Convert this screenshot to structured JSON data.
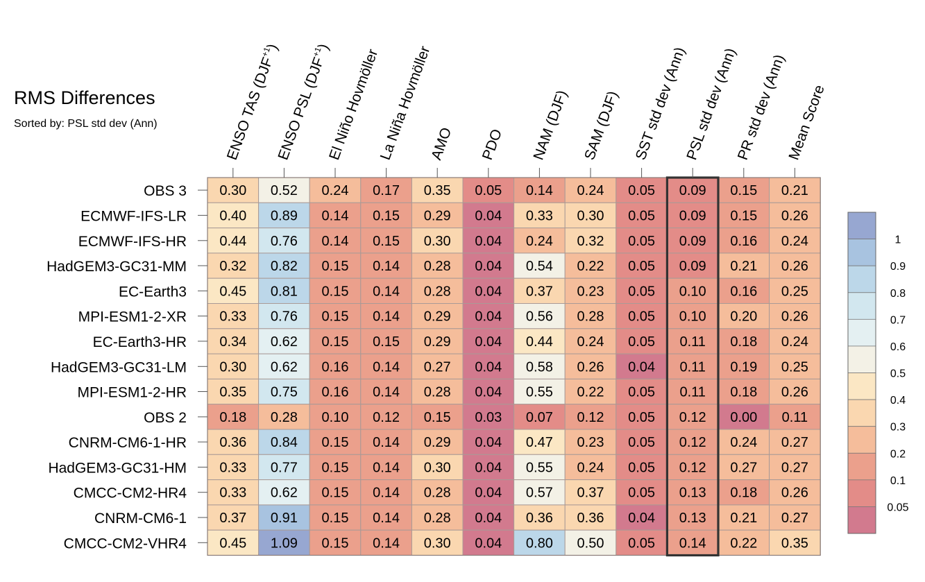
{
  "chart_data": {
    "type": "heatmap",
    "title": "RMS Differences",
    "subtitle": "Sorted by: PSL std dev (Ann)",
    "columns": [
      {
        "base": "ENSO TAS (DJF",
        "sup": "+1",
        "tail": ")"
      },
      {
        "base": "ENSO PSL (DJF",
        "sup": "+1",
        "tail": ")"
      },
      {
        "base": "El Niño Hovmöller"
      },
      {
        "base": "La Niña Hovmöller"
      },
      {
        "base": "AMO"
      },
      {
        "base": "PDO"
      },
      {
        "base": "NAM (DJF)"
      },
      {
        "base": "SAM (DJF)"
      },
      {
        "base": "SST std dev (Ann)"
      },
      {
        "base": "PSL std dev (Ann)"
      },
      {
        "base": "PR std dev (Ann)"
      },
      {
        "base": "Mean Score"
      }
    ],
    "rows": [
      "OBS 3",
      "ECMWF-IFS-LR",
      "ECMWF-IFS-HR",
      "HadGEM3-GC31-MM",
      "EC-Earth3",
      "MPI-ESM1-2-XR",
      "EC-Earth3-HR",
      "HadGEM3-GC31-LM",
      "MPI-ESM1-2-HR",
      "OBS 2",
      "CNRM-CM6-1-HR",
      "HadGEM3-GC31-HM",
      "CMCC-CM2-HR4",
      "CNRM-CM6-1",
      "CMCC-CM2-VHR4"
    ],
    "values": [
      [
        "0.30",
        "0.52",
        "0.24",
        "0.17",
        "0.35",
        "0.05",
        "0.14",
        "0.24",
        "0.05",
        "0.09",
        "0.15",
        "0.21"
      ],
      [
        "0.40",
        "0.89",
        "0.14",
        "0.15",
        "0.29",
        "0.04",
        "0.33",
        "0.30",
        "0.05",
        "0.09",
        "0.15",
        "0.26"
      ],
      [
        "0.44",
        "0.76",
        "0.14",
        "0.15",
        "0.30",
        "0.04",
        "0.24",
        "0.32",
        "0.05",
        "0.09",
        "0.16",
        "0.24"
      ],
      [
        "0.32",
        "0.82",
        "0.15",
        "0.14",
        "0.28",
        "0.04",
        "0.54",
        "0.22",
        "0.05",
        "0.09",
        "0.21",
        "0.26"
      ],
      [
        "0.45",
        "0.81",
        "0.15",
        "0.14",
        "0.28",
        "0.04",
        "0.37",
        "0.23",
        "0.05",
        "0.10",
        "0.16",
        "0.25"
      ],
      [
        "0.33",
        "0.76",
        "0.15",
        "0.14",
        "0.29",
        "0.04",
        "0.56",
        "0.28",
        "0.05",
        "0.10",
        "0.20",
        "0.26"
      ],
      [
        "0.34",
        "0.62",
        "0.15",
        "0.15",
        "0.29",
        "0.04",
        "0.44",
        "0.24",
        "0.05",
        "0.11",
        "0.18",
        "0.24"
      ],
      [
        "0.30",
        "0.62",
        "0.16",
        "0.14",
        "0.27",
        "0.04",
        "0.58",
        "0.26",
        "0.04",
        "0.11",
        "0.19",
        "0.25"
      ],
      [
        "0.35",
        "0.75",
        "0.16",
        "0.14",
        "0.28",
        "0.04",
        "0.55",
        "0.22",
        "0.05",
        "0.11",
        "0.18",
        "0.26"
      ],
      [
        "0.18",
        "0.28",
        "0.10",
        "0.12",
        "0.15",
        "0.03",
        "0.07",
        "0.12",
        "0.05",
        "0.12",
        "0.00",
        "0.11"
      ],
      [
        "0.36",
        "0.84",
        "0.15",
        "0.14",
        "0.29",
        "0.04",
        "0.47",
        "0.23",
        "0.05",
        "0.12",
        "0.24",
        "0.27"
      ],
      [
        "0.33",
        "0.77",
        "0.15",
        "0.14",
        "0.30",
        "0.04",
        "0.55",
        "0.24",
        "0.05",
        "0.12",
        "0.27",
        "0.27"
      ],
      [
        "0.33",
        "0.62",
        "0.15",
        "0.14",
        "0.28",
        "0.04",
        "0.57",
        "0.37",
        "0.05",
        "0.13",
        "0.18",
        "0.26"
      ],
      [
        "0.37",
        "0.91",
        "0.15",
        "0.14",
        "0.28",
        "0.04",
        "0.36",
        "0.36",
        "0.04",
        "0.13",
        "0.21",
        "0.27"
      ],
      [
        "0.45",
        "1.09",
        "0.15",
        "0.14",
        "0.30",
        "0.04",
        "0.80",
        "0.50",
        "0.05",
        "0.14",
        "0.22",
        "0.35"
      ]
    ],
    "highlight_column": "PSL std dev (Ann)",
    "colorbar": {
      "labels": [
        "1",
        "0.9",
        "0.8",
        "0.7",
        "0.6",
        "0.5",
        "0.4",
        "0.3",
        "0.2",
        "0.1",
        "0.05"
      ],
      "colors": [
        "#97a7d1",
        "#a8c3e0",
        "#bcd7e9",
        "#d2e7ef",
        "#e4f0f2",
        "#f3f1e6",
        "#fbe7c4",
        "#fad7b0",
        "#f5bd9b",
        "#eba08c",
        "#e38c88",
        "#d27a8e"
      ]
    }
  }
}
